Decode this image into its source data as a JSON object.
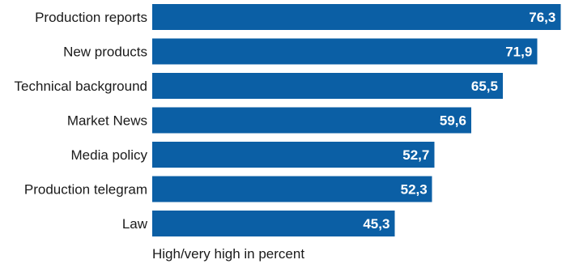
{
  "chart_data": {
    "type": "bar",
    "orientation": "horizontal",
    "categories": [
      "Production reports",
      "New products",
      "Technical background",
      "Market News",
      "Media policy",
      "Production telegram",
      "Law"
    ],
    "values": [
      76.3,
      71.9,
      65.5,
      59.6,
      52.7,
      52.3,
      45.3
    ],
    "value_labels": [
      "76,3",
      "71,9",
      "65,5",
      "59,6",
      "52,7",
      "52,3",
      "45,3"
    ],
    "xlabel": "High/very high in percent",
    "xlim": [
      0,
      77
    ],
    "grid": false,
    "bar_color": "#0b5fa5",
    "label_color": "#ffffff"
  }
}
